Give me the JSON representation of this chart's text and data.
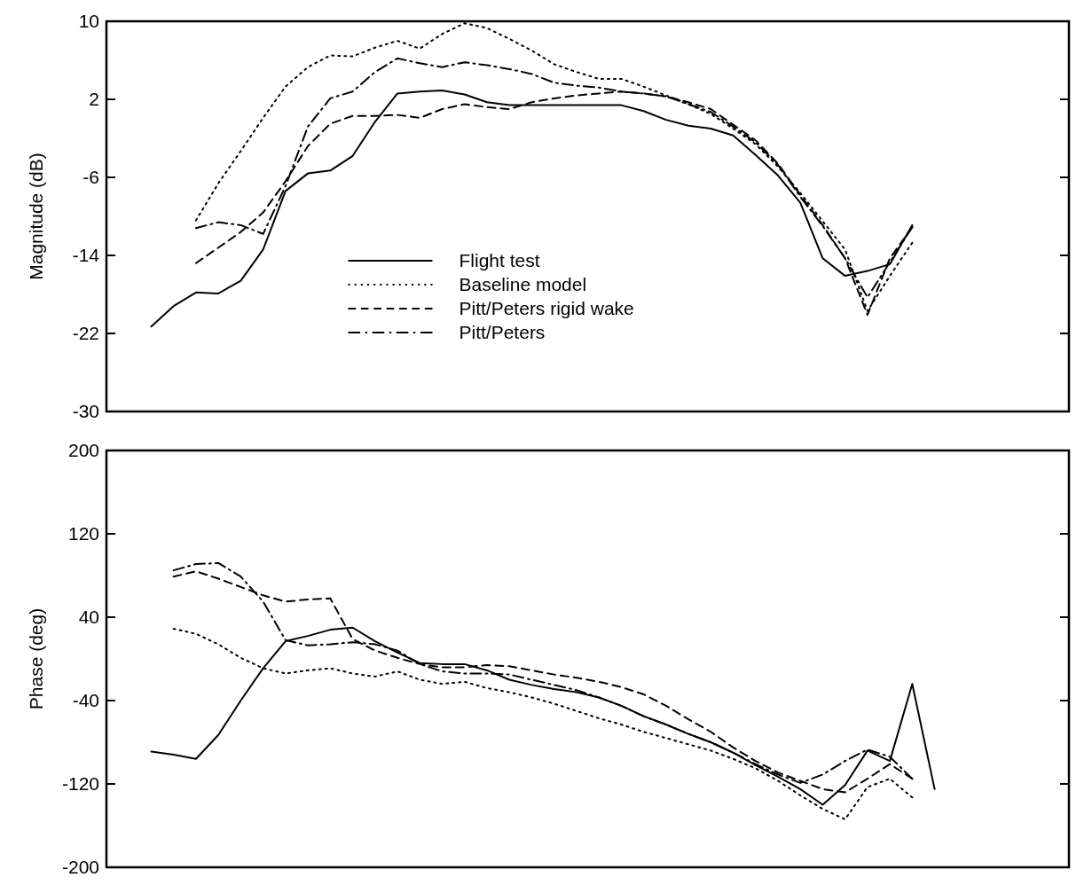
{
  "chart_data": [
    {
      "type": "line",
      "ylabel": "Magnitude (dB)",
      "categories": [
        null,
        null,
        null,
        null,
        null,
        null,
        null,
        null,
        null,
        null,
        null,
        null,
        null,
        null,
        null,
        null,
        null,
        null,
        null,
        null,
        null,
        null,
        null,
        null,
        null,
        null,
        null,
        null,
        null,
        null,
        null,
        null,
        null,
        null,
        null,
        null,
        null,
        null,
        null,
        null,
        null,
        null,
        null,
        null
      ],
      "ylim": [
        -30,
        10
      ],
      "yticks": [
        -30,
        -22,
        -14,
        -6,
        2,
        10
      ],
      "tick_labels": "y",
      "grid": false,
      "legend": "bottom",
      "series": [
        {
          "name": "Flight test",
          "color": "#000000",
          "line_style": "solid",
          "values": [
            null,
            null,
            -21.3,
            -19.2,
            -17.8,
            -17.9,
            -16.6,
            -13.4,
            -7.4,
            -5.6,
            -5.3,
            -3.8,
            -0.3,
            2.6,
            2.8,
            2.9,
            2.5,
            1.7,
            1.4,
            1.4,
            1.4,
            1.4,
            1.4,
            1.4,
            0.8,
            -0.1,
            -0.7,
            -1.0,
            -1.7,
            -3.7,
            -5.8,
            -8.6,
            -14.3,
            -16.1,
            -15.6,
            -14.9,
            -10.9,
            null,
            null,
            null,
            null,
            null,
            null,
            null
          ]
        },
        {
          "name": "Baseline model",
          "color": "#000000",
          "line_style": "dotted",
          "values": [
            null,
            null,
            null,
            null,
            -10.4,
            -6.6,
            -3.3,
            0.1,
            3.3,
            5.3,
            6.5,
            6.4,
            7.3,
            8.0,
            7.2,
            8.7,
            9.8,
            9.3,
            8.2,
            7.0,
            5.6,
            4.8,
            4.1,
            4.1,
            3.3,
            2.4,
            1.5,
            0.5,
            -1.0,
            -2.6,
            -4.9,
            -7.6,
            -10.5,
            -13.4,
            -19.7,
            -16.1,
            -12.7,
            null,
            null,
            null,
            null,
            null,
            null,
            null
          ]
        },
        {
          "name": "Pitt/Peters rigid wake",
          "color": "#000000",
          "line_style": "dashed",
          "values": [
            null,
            null,
            null,
            null,
            -14.8,
            -13.2,
            -11.6,
            -9.6,
            -6.4,
            -2.8,
            -0.5,
            0.3,
            0.3,
            0.4,
            0.1,
            1.0,
            1.5,
            1.2,
            1.0,
            1.7,
            2.1,
            2.4,
            2.6,
            2.8,
            2.6,
            2.3,
            1.7,
            1.0,
            -0.6,
            -2.2,
            -4.6,
            -7.8,
            -10.9,
            -14.3,
            -20.1,
            -14.3,
            -11.1,
            null,
            null,
            null,
            null,
            null,
            null,
            null
          ]
        },
        {
          "name": "Pitt/Peters",
          "color": "#000000",
          "line_style": "dashdot",
          "values": [
            null,
            null,
            null,
            null,
            -11.2,
            -10.6,
            -10.9,
            -11.8,
            -6.9,
            -0.8,
            2.1,
            2.8,
            4.8,
            6.2,
            5.7,
            5.3,
            5.8,
            5.5,
            5.1,
            4.6,
            3.7,
            3.4,
            3.2,
            2.8,
            2.6,
            2.3,
            1.5,
            0.7,
            -0.8,
            -2.4,
            -4.7,
            -8.0,
            -11.0,
            -14.3,
            -18.3,
            -14.7,
            -11.1,
            null,
            null,
            null,
            null,
            null,
            null,
            null
          ]
        }
      ]
    },
    {
      "type": "line",
      "ylabel": "Phase (deg)",
      "categories": [
        null,
        null,
        null,
        null,
        null,
        null,
        null,
        null,
        null,
        null,
        null,
        null,
        null,
        null,
        null,
        null,
        null,
        null,
        null,
        null,
        null,
        null,
        null,
        null,
        null,
        null,
        null,
        null,
        null,
        null,
        null,
        null,
        null,
        null,
        null,
        null,
        null,
        null,
        null,
        null,
        null,
        null,
        null,
        null
      ],
      "ylim": [
        -200,
        200
      ],
      "yticks": [
        -200,
        -120,
        -40,
        40,
        120,
        200
      ],
      "tick_labels": "y",
      "grid": false,
      "series": [
        {
          "color": "#000000",
          "line_style": "solid",
          "values": [
            null,
            null,
            -89,
            -92,
            -96,
            -73,
            -40,
            -9,
            17,
            22,
            28,
            30,
            17,
            6,
            -4,
            -5,
            -5,
            -11,
            -20,
            -25,
            -29,
            -32,
            -37,
            -45,
            -55,
            -63,
            -72,
            -80,
            -90,
            -102,
            -113,
            -125,
            -140,
            -121,
            -88,
            -98,
            -24,
            -125,
            null,
            null,
            null,
            null,
            null,
            null
          ]
        },
        {
          "color": "#000000",
          "line_style": "dotted",
          "values": [
            null,
            null,
            null,
            29,
            24,
            14,
            1,
            -9,
            -14,
            -11,
            -9,
            -14,
            -17,
            -12,
            -20,
            -24,
            -22,
            -28,
            -32,
            -37,
            -43,
            -50,
            -57,
            -63,
            -70,
            -76,
            -82,
            -88,
            -96,
            -105,
            -117,
            -131,
            -144,
            -154,
            -123,
            -115,
            -133,
            null,
            null,
            null,
            null,
            null,
            null,
            null
          ]
        },
        {
          "color": "#000000",
          "line_style": "dashed",
          "values": [
            null,
            null,
            null,
            79,
            84,
            77,
            69,
            61,
            55,
            57,
            58,
            19,
            8,
            1,
            -5,
            -8,
            -8,
            -6,
            -7,
            -11,
            -15,
            -18,
            -22,
            -27,
            -34,
            -45,
            -58,
            -70,
            -85,
            -98,
            -109,
            -117,
            -125,
            -128,
            -115,
            -101,
            -115,
            null,
            null,
            null,
            null,
            null,
            null,
            null
          ]
        },
        {
          "color": "#000000",
          "line_style": "dashdot",
          "values": [
            null,
            null,
            null,
            85,
            91,
            92,
            79,
            55,
            18,
            13,
            14,
            16,
            14,
            8,
            -5,
            -12,
            -14,
            -14,
            -15,
            -20,
            -25,
            -30,
            -37,
            -45,
            -55,
            -63,
            -72,
            -80,
            -90,
            -101,
            -111,
            -119,
            -111,
            -98,
            -87,
            -94,
            -115,
            null,
            null,
            null,
            null,
            null,
            null,
            null
          ]
        }
      ]
    }
  ]
}
